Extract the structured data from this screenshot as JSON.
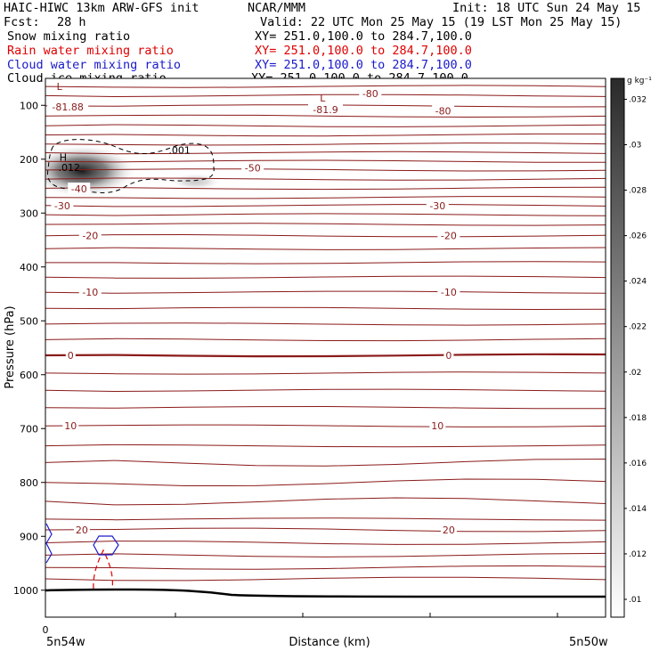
{
  "header": {
    "title": "HAIC-HIWC 13km ARW-GFS init",
    "org": "NCAR/MMM",
    "init": "Init: 18 UTC Sun 24 May 15",
    "fcst_label": "Fcst:",
    "fcst_value": "28 h",
    "valid": "Valid: 22 UTC Mon 25 May 15 (19 LST Mon 25 May 15)",
    "fields": [
      {
        "name": "Snow mixing ratio",
        "xy": "XY= 251.0,100.0 to 284.7,100.0",
        "color": "#000000"
      },
      {
        "name": "Rain water mixing ratio",
        "xy": "XY= 251.0,100.0 to 284.7,100.0",
        "color": "#e00000"
      },
      {
        "name": "Cloud water mixing ratio",
        "xy": "XY= 251.0,100.0 to 284.7,100.0",
        "color": "#1a1acc"
      },
      {
        "name": "Cloud ice mixing ratio",
        "xy": "XY= 251.0,100.0 to 284.7,100.0",
        "color": "#000000"
      }
    ]
  },
  "chart_data": {
    "type": "cross-section contour",
    "ylabel": "Pressure (hPa)",
    "xlabel": "Distance (km)",
    "x_start_tick": "0",
    "x_left_label": "5n54w",
    "x_right_label": "5n50w",
    "y_ticks": [
      100,
      200,
      300,
      400,
      500,
      600,
      700,
      800,
      900,
      1000
    ],
    "ylim": [
      50,
      1050
    ],
    "colorbar": {
      "unit": "g kg⁻¹",
      "ticks": [
        ".01",
        ".012",
        ".014",
        ".016",
        ".018",
        ".02",
        ".022",
        ".024",
        ".026",
        ".028",
        ".03",
        ".032"
      ]
    },
    "temperature_labels": [
      {
        "text": "-80",
        "p": 78,
        "x": 0.58
      },
      {
        "text": "-80",
        "p": 110,
        "x": 0.71
      },
      {
        "text": "-81.9",
        "p": 108,
        "x": 0.5
      },
      {
        "text": "-81.88",
        "p": 103,
        "x": 0.04
      },
      {
        "text": "-50",
        "p": 216,
        "x": 0.37
      },
      {
        "text": "-40",
        "p": 255,
        "x": 0.06
      },
      {
        "text": "-30",
        "p": 286,
        "x": 0.03
      },
      {
        "text": "-30",
        "p": 286,
        "x": 0.7
      },
      {
        "text": "-20",
        "p": 342,
        "x": 0.08
      },
      {
        "text": "-20",
        "p": 342,
        "x": 0.72
      },
      {
        "text": "-10",
        "p": 447,
        "x": 0.08
      },
      {
        "text": "-10",
        "p": 447,
        "x": 0.72
      },
      {
        "text": "0",
        "p": 564,
        "x": 0.045
      },
      {
        "text": "0",
        "p": 564,
        "x": 0.72
      },
      {
        "text": "10",
        "p": 695,
        "x": 0.045
      },
      {
        "text": "10",
        "p": 695,
        "x": 0.7
      },
      {
        "text": "20",
        "p": 888,
        "x": 0.065
      },
      {
        "text": "20",
        "p": 888,
        "x": 0.72
      }
    ],
    "markers": [
      {
        "text": "L",
        "p": 65,
        "x": 0.02
      },
      {
        "text": "L",
        "p": 86,
        "x": 0.49
      },
      {
        "text": "H",
        "p": 196,
        "x": 0.025
      }
    ],
    "ice_labels": [
      {
        "text": ".001",
        "p": 183,
        "x": 0.22
      },
      {
        "text": ".012",
        "p": 215,
        "x": 0.023
      }
    ],
    "isotherm_pressures": [
      65,
      82,
      101,
      120,
      138,
      155,
      172,
      188,
      204,
      220,
      237,
      254,
      271,
      286,
      303,
      321,
      342,
      366,
      392,
      419,
      447,
      477,
      506,
      535,
      564,
      597,
      629,
      661,
      695,
      732,
      763,
      800,
      835,
      868,
      888,
      912,
      935,
      958,
      979
    ]
  }
}
